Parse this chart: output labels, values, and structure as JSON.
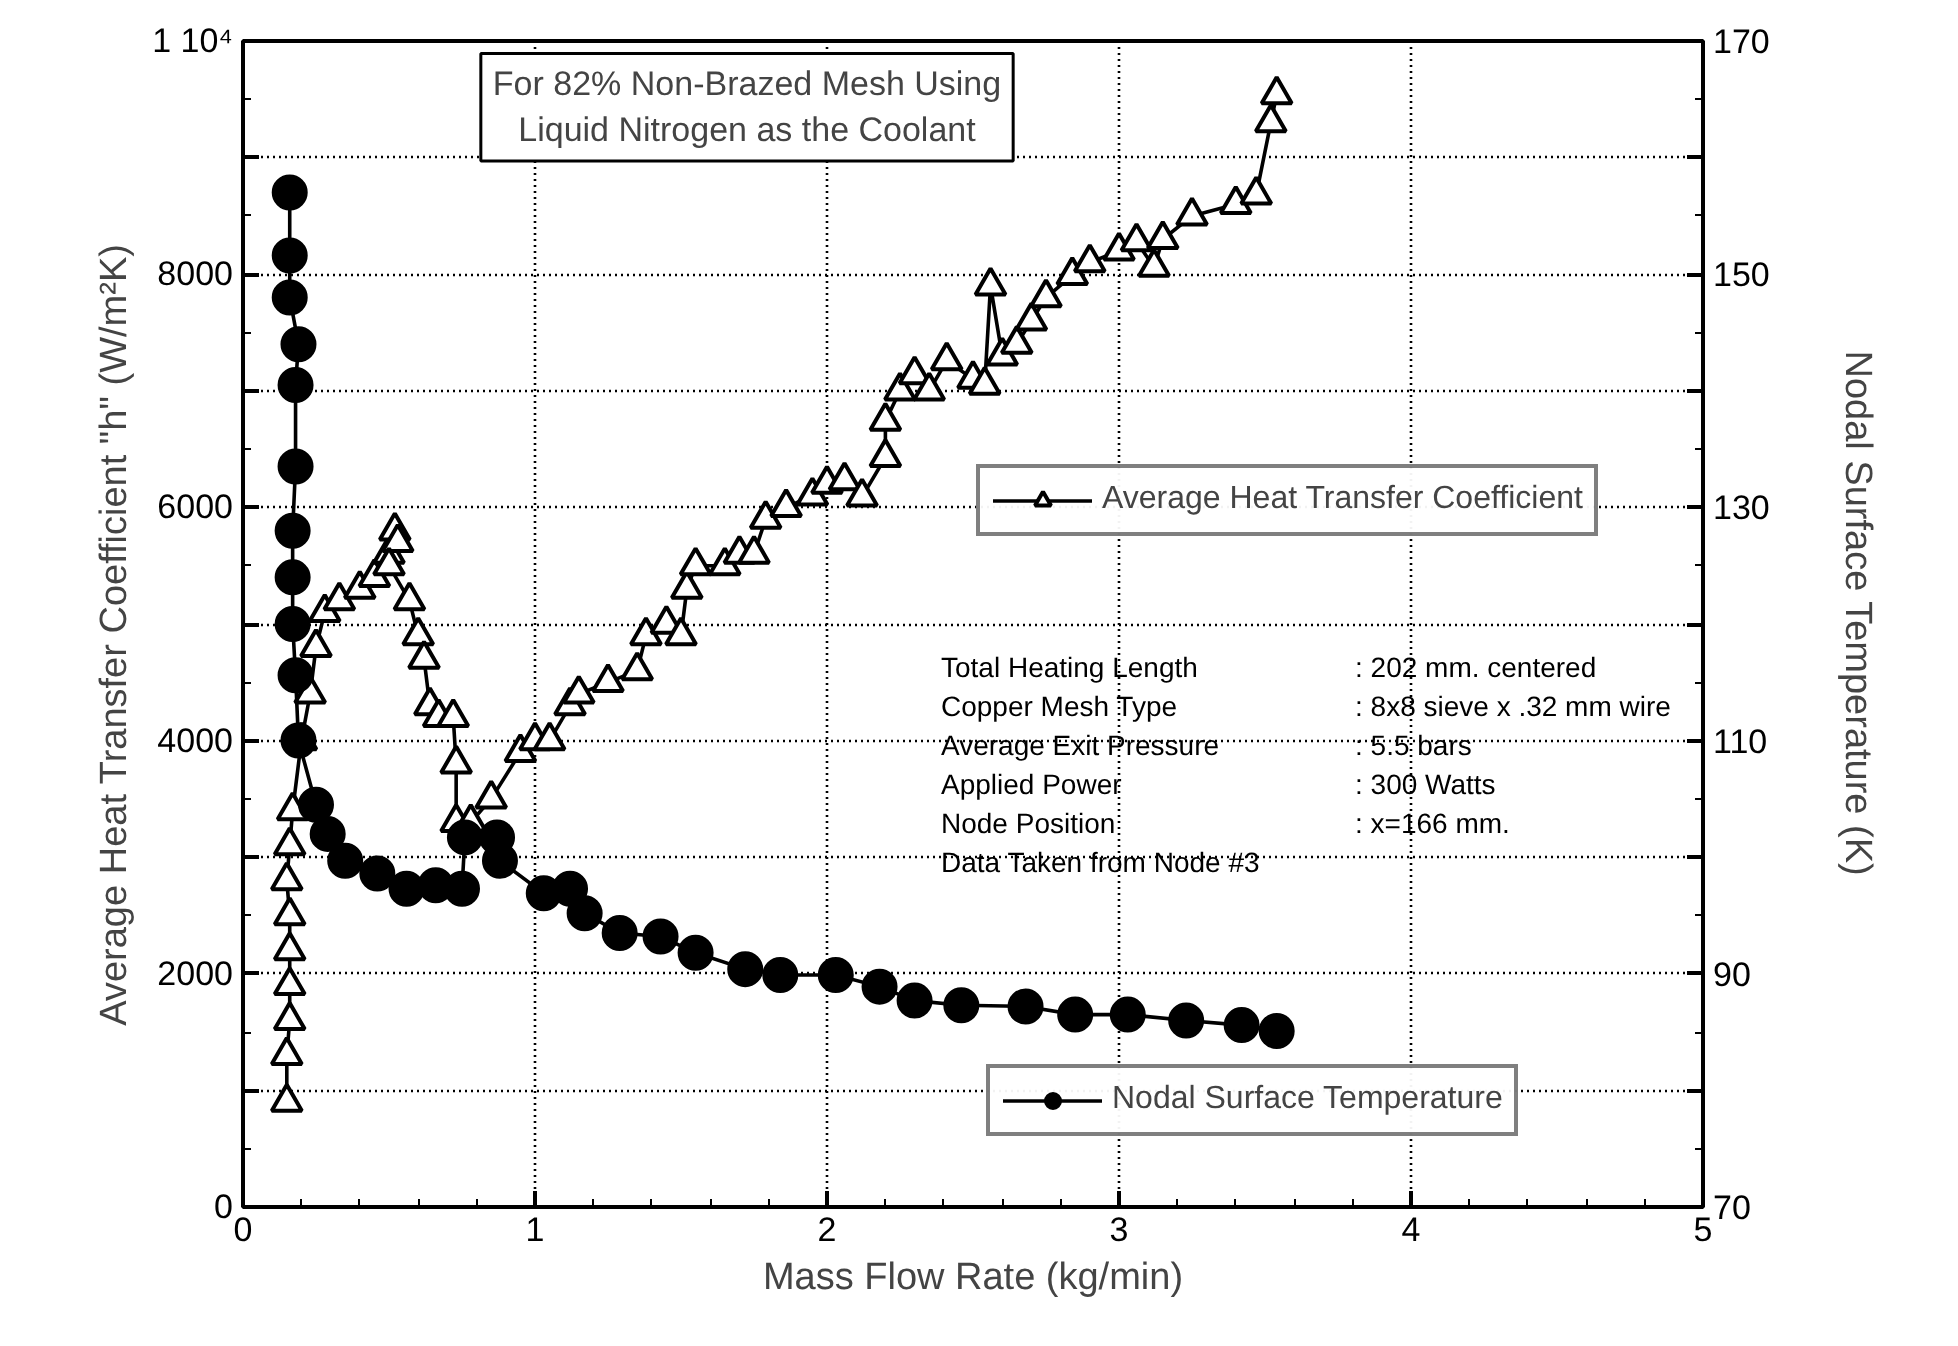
{
  "chart_data": {
    "type": "line",
    "title": "For 82% Non-Brazed Mesh Using Liquid Nitrogen as the Coolant",
    "xlabel": "Mass Flow Rate (kg/min)",
    "ylabel": "Average Heat Transfer Coefficient  \"h\"  (W/m²K)",
    "y2label": "Nodal Surface Temperature   (K)",
    "xlim": [
      0,
      5
    ],
    "xticks": [
      0,
      1,
      2,
      3,
      4,
      5
    ],
    "ylim": [
      0,
      10000
    ],
    "yticks": [
      0,
      {
        "value": 1000,
        "label": null
      },
      2000,
      {
        "value": 3000,
        "label": null
      },
      4000,
      {
        "value": 5000,
        "label": null
      },
      6000,
      {
        "value": 7000,
        "label": null
      },
      8000,
      {
        "value": 9000,
        "label": null
      },
      {
        "value": 10000,
        "label": "1 10⁴"
      }
    ],
    "y2lim": [
      70,
      170
    ],
    "y2ticks": [
      70,
      {
        "value": 80,
        "label": null
      },
      90,
      {
        "value": 100,
        "label": null
      },
      110,
      {
        "value": 120,
        "label": null
      },
      130,
      {
        "value": 140,
        "label": null
      },
      150,
      {
        "value": 160,
        "label": null
      },
      170
    ],
    "grid": true,
    "legend": "right",
    "series": [
      {
        "name": "Average Heat Transfer Coefficient",
        "color": "#000000",
        "marker": "triangle",
        "x": [
          0.15,
          0.15,
          0.16,
          0.16,
          0.16,
          0.16,
          0.15,
          0.16,
          0.17,
          0.2,
          0.23,
          0.25,
          0.28,
          0.33,
          0.4,
          0.45,
          0.5,
          0.52,
          0.53,
          0.5,
          0.57,
          0.6,
          0.62,
          0.64,
          0.67,
          0.72,
          0.73,
          0.73,
          0.78,
          0.85,
          0.95,
          1.0,
          1.05,
          1.12,
          1.15,
          1.25,
          1.35,
          1.38,
          1.45,
          1.5,
          1.52,
          1.55,
          1.65,
          1.7,
          1.75,
          1.79,
          1.86,
          1.95,
          2.0,
          2.06,
          2.12,
          2.2,
          2.2,
          2.25,
          2.3,
          2.35,
          2.41,
          2.5,
          2.54,
          2.56,
          2.6,
          2.65,
          2.7,
          2.75,
          2.84,
          2.9,
          3.0,
          3.06,
          3.12,
          3.15,
          3.25,
          3.4,
          3.47,
          3.52,
          3.54
        ],
        "values": [
          900,
          1300,
          1600,
          1900,
          2200,
          2500,
          2800,
          3100,
          3400,
          4000,
          4400,
          4800,
          5100,
          5200,
          5300,
          5400,
          5600,
          5800,
          5700,
          5500,
          5200,
          4900,
          4700,
          4300,
          4200,
          4200,
          3800,
          3300,
          3300,
          3500,
          3900,
          4000,
          4000,
          4300,
          4400,
          4500,
          4600,
          4900,
          5000,
          4900,
          5300,
          5500,
          5500,
          5600,
          5600,
          5900,
          6000,
          6100,
          6200,
          6230,
          6090,
          6430,
          6740,
          7000,
          7140,
          7000,
          7260,
          7100,
          7050,
          7900,
          7300,
          7400,
          7600,
          7800,
          7990,
          8100,
          8200,
          8280,
          8060,
          8300,
          8500,
          8600,
          8680,
          9300,
          9540
        ]
      },
      {
        "name": "Nodal Surface Temperature",
        "color": "#000000",
        "marker": "circle",
        "axis": "y2",
        "x": [
          0.16,
          0.16,
          0.16,
          0.19,
          0.18,
          0.18,
          0.17,
          0.17,
          0.17,
          0.18,
          0.19,
          0.25,
          0.29,
          0.35,
          0.46,
          0.56,
          0.66,
          0.75,
          0.76,
          0.87,
          0.88,
          1.03,
          1.12,
          1.17,
          1.29,
          1.43,
          1.55,
          1.72,
          1.84,
          2.03,
          2.18,
          2.3,
          2.46,
          2.68,
          2.85,
          3.03,
          3.23,
          3.42,
          3.54
        ],
        "values": [
          157,
          151.6,
          148,
          144,
          140.5,
          133.5,
          128,
          124,
          120,
          115.6,
          110,
          104.5,
          102,
          99.7,
          98.6,
          97.3,
          97.6,
          97.3,
          101.7,
          101.7,
          99.7,
          96.9,
          97.3,
          95.2,
          93.5,
          93.2,
          91.8,
          90.4,
          89.9,
          89.9,
          88.9,
          87.7,
          87.3,
          87.2,
          86.5,
          86.5,
          86,
          85.6,
          85.1
        ]
      }
    ],
    "annotations": [
      "Total Heating Length : 202 mm.  centered",
      "Copper Mesh Type : 8x8 sieve x .32 mm wire",
      "Average Exit Pressure : 5.5 bars",
      "Applied Power : 300 Watts",
      "Node Position : x=166 mm.",
      "Data Taken from Node #3"
    ]
  }
}
